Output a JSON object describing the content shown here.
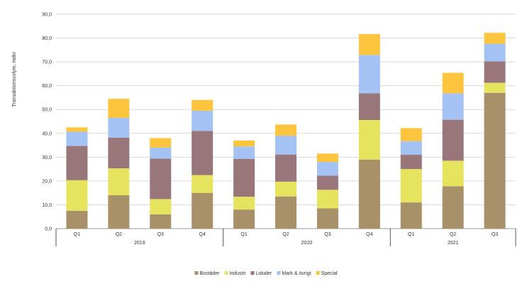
{
  "chart_data": {
    "type": "bar",
    "stacked": true,
    "title": "",
    "ylabel": "Transaktionsvolym, mdkr",
    "xlabel": "",
    "ylim": [
      0,
      90
    ],
    "y_ticks": [
      "0,0",
      "10,0",
      "20,0",
      "30,0",
      "40,0",
      "50,0",
      "60,0",
      "70,0",
      "80,0",
      "90,0"
    ],
    "categories": [
      "Q1",
      "Q2",
      "Q3",
      "Q4",
      "Q1",
      "Q2",
      "Q3",
      "Q4",
      "Q1",
      "Q2",
      "Q3"
    ],
    "groups": [
      {
        "label": "2019",
        "start": 0,
        "end": 3
      },
      {
        "label": "2020",
        "start": 4,
        "end": 7
      },
      {
        "label": "2021",
        "start": 8,
        "end": 10
      }
    ],
    "legend_position": "bottom",
    "series": [
      {
        "name": "Bostäder",
        "color": "#a89068",
        "values": [
          7.5,
          14.0,
          6.0,
          15.0,
          8.0,
          13.5,
          8.5,
          29.0,
          11.0,
          17.8,
          57.0
        ]
      },
      {
        "name": "Industri",
        "color": "#e6e35e",
        "values": [
          12.8,
          11.3,
          6.4,
          7.5,
          5.4,
          6.2,
          7.8,
          16.6,
          14.0,
          10.7,
          4.2
        ]
      },
      {
        "name": "Lokaler",
        "color": "#98767a",
        "values": [
          14.4,
          12.9,
          17.0,
          18.5,
          15.9,
          11.4,
          5.9,
          11.2,
          6.0,
          17.2,
          9.0
        ]
      },
      {
        "name": "Mark & övrigt",
        "color": "#a4c2f4",
        "values": [
          6.0,
          8.3,
          4.6,
          8.5,
          5.2,
          7.9,
          5.8,
          16.1,
          5.7,
          11.1,
          7.4
        ]
      },
      {
        "name": "Special",
        "color": "#fdc53e",
        "values": [
          1.8,
          8.0,
          4.0,
          4.5,
          2.5,
          4.7,
          3.5,
          8.8,
          5.5,
          8.6,
          4.6
        ]
      }
    ]
  }
}
